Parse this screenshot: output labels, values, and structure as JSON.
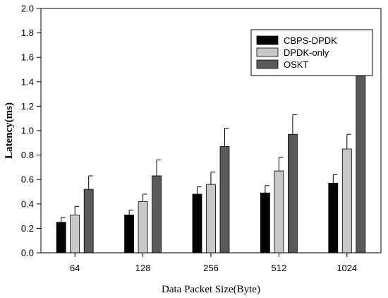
{
  "chart_data": {
    "type": "bar",
    "title": "",
    "xlabel": "Data Packet Size(Byte)",
    "ylabel": "Latency(ms)",
    "ylim": [
      0,
      2.0
    ],
    "yticks": [
      "0.0",
      "0.2",
      "0.4",
      "0.6",
      "0.8",
      "1.0",
      "1.2",
      "1.4",
      "1.6",
      "1.8",
      "2.0"
    ],
    "categories": [
      "64",
      "128",
      "256",
      "512",
      "1024"
    ],
    "legend_position": "top-right",
    "error_bars": true,
    "series": [
      {
        "name": "CBPS-DPDK",
        "color": "#000000",
        "values": [
          0.25,
          0.31,
          0.48,
          0.49,
          0.57
        ],
        "errors": [
          0.04,
          0.04,
          0.06,
          0.06,
          0.07
        ]
      },
      {
        "name": "DPDK-only",
        "color": "#c8c8c8",
        "values": [
          0.31,
          0.42,
          0.56,
          0.67,
          0.85
        ],
        "errors": [
          0.07,
          0.06,
          0.1,
          0.11,
          0.12
        ]
      },
      {
        "name": "OSKT",
        "color": "#5a5a5a",
        "values": [
          0.52,
          0.63,
          0.87,
          0.97,
          1.56
        ],
        "errors": [
          0.11,
          0.13,
          0.15,
          0.16,
          0.2
        ]
      }
    ]
  }
}
